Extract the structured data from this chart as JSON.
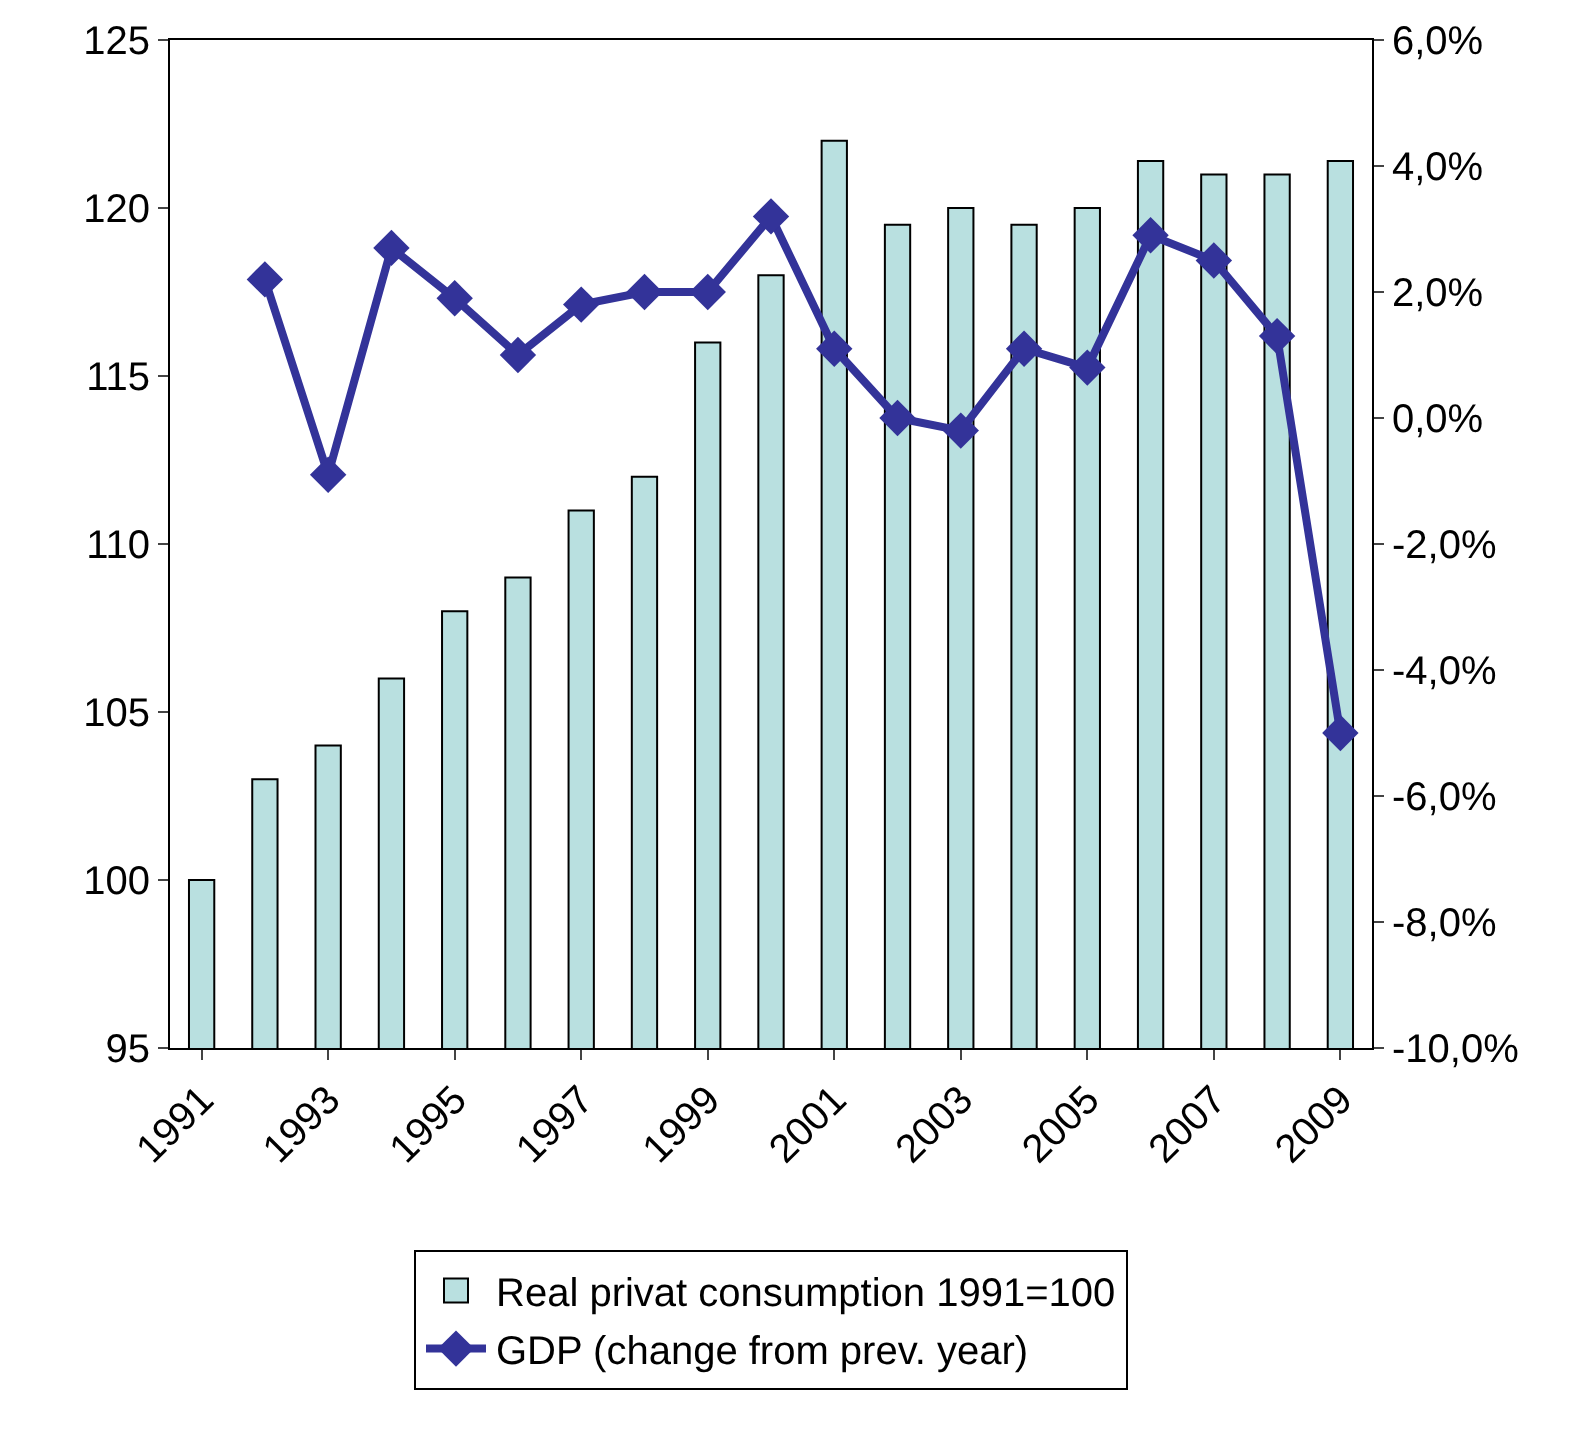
{
  "chart_data": {
    "type": "bar",
    "categories": [
      "1991",
      null,
      "1993",
      null,
      "1995",
      null,
      "1997",
      null,
      "1999",
      null,
      "2001",
      null,
      "2003",
      null,
      "2005",
      null,
      "2007",
      null,
      "2009"
    ],
    "series": [
      {
        "name": "Real privat consumption 1991=100",
        "color": "#b9e0e0",
        "values": [
          100,
          103,
          104,
          106,
          108,
          109,
          111,
          112,
          116,
          118,
          122,
          119.5,
          120,
          119.5,
          120,
          121.4,
          121,
          121,
          121.4
        ]
      },
      {
        "name": "GDP (change from prev. year)",
        "type": "line",
        "axis": "y2",
        "color": "#333399",
        "values": [
          null,
          2.2,
          -0.9,
          2.7,
          1.9,
          1.0,
          1.8,
          2.0,
          2.0,
          3.2,
          1.1,
          0.0,
          -0.2,
          1.1,
          0.8,
          2.9,
          2.5,
          1.3,
          -5.0
        ]
      }
    ],
    "ylim": [
      95,
      125
    ],
    "yticks": [
      95,
      100,
      105,
      110,
      115,
      120,
      125
    ],
    "y2lim": [
      -10,
      6
    ],
    "y2ticks": [
      {
        "value": -10,
        "label": "-10,0%"
      },
      {
        "value": -8,
        "label": "-8,0%"
      },
      {
        "value": -6,
        "label": "-6,0%"
      },
      {
        "value": -4,
        "label": "-4,0%"
      },
      {
        "value": -2,
        "label": "-2,0%"
      },
      {
        "value": 0,
        "label": "0,0%"
      },
      {
        "value": 2,
        "label": "2,0%"
      },
      {
        "value": 4,
        "label": "4,0%"
      },
      {
        "value": 6,
        "label": "6,0%"
      }
    ],
    "grid": false,
    "legend": "bottom",
    "marker": "diamond",
    "line_style": "solid"
  }
}
